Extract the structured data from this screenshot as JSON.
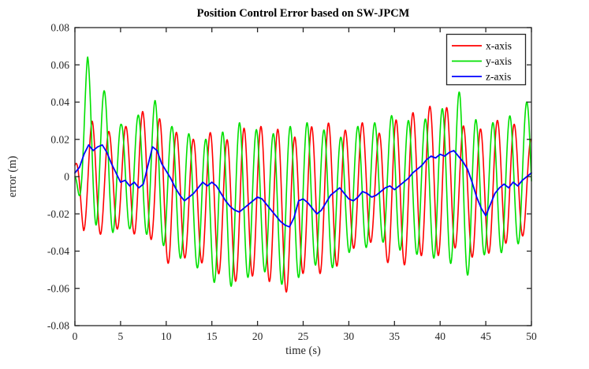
{
  "chart_data": {
    "type": "line",
    "title": "Position Control Error based on SW-JPCM",
    "xlabel": "time (s)",
    "ylabel": "error (m)",
    "xlim": [
      0,
      50
    ],
    "ylim": [
      -0.08,
      0.08
    ],
    "xticks": [
      0,
      5,
      10,
      15,
      20,
      25,
      30,
      35,
      40,
      45,
      50
    ],
    "xtick_labels": [
      "0",
      "5",
      "10",
      "15",
      "20",
      "25",
      "30",
      "35",
      "40",
      "45",
      "50"
    ],
    "yticks": [
      -0.08,
      -0.06,
      -0.04,
      -0.02,
      0,
      0.02,
      0.04,
      0.06,
      0.08
    ],
    "ytick_labels": [
      "-0.08",
      "-0.06",
      "-0.04",
      "-0.02",
      "0",
      "0.02",
      "0.04",
      "0.06",
      "0.08"
    ],
    "grid": false,
    "axis_color": "#262626",
    "background_color": "#ffffff",
    "legend": {
      "position": "top-right",
      "border": true,
      "entries": [
        {
          "label": "x-axis",
          "color": "#ff0000"
        },
        {
          "label": "y-axis",
          "color": "#00e000"
        },
        {
          "label": "z-axis",
          "color": "#0000ff"
        }
      ]
    },
    "series": [
      {
        "name": "x-axis",
        "color": "#ff0000",
        "model": "am_sine",
        "period_s": 1.85,
        "phase_s": -0.44,
        "envelope_upper": [
          [
            0,
            0.006
          ],
          [
            1.9,
            0.03
          ],
          [
            3.8,
            0.024
          ],
          [
            5.6,
            0.027
          ],
          [
            7.4,
            0.035
          ],
          [
            9.3,
            0.031
          ],
          [
            11,
            0.024
          ],
          [
            13,
            0.02
          ],
          [
            15,
            0.024
          ],
          [
            17,
            0.019
          ],
          [
            18.5,
            0.026
          ],
          [
            20.5,
            0.027
          ],
          [
            22,
            0.026
          ],
          [
            24,
            0.021
          ],
          [
            26,
            0.027
          ],
          [
            28,
            0.029
          ],
          [
            30,
            0.024
          ],
          [
            31.5,
            0.029
          ],
          [
            33,
            0.022
          ],
          [
            35,
            0.03
          ],
          [
            36.5,
            0.034
          ],
          [
            38,
            0.035
          ],
          [
            39.6,
            0.04
          ],
          [
            41.5,
            0.035
          ],
          [
            43,
            0.024
          ],
          [
            44.8,
            0.026
          ],
          [
            46,
            0.03
          ],
          [
            47.5,
            0.031
          ],
          [
            49,
            0.024
          ],
          [
            50,
            0.02
          ]
        ],
        "envelope_lower": [
          [
            0,
            -0.006
          ],
          [
            0.95,
            -0.029
          ],
          [
            2.85,
            -0.031
          ],
          [
            4.75,
            -0.028
          ],
          [
            6.6,
            -0.031
          ],
          [
            8.5,
            -0.034
          ],
          [
            10.4,
            -0.048
          ],
          [
            12.3,
            -0.043
          ],
          [
            14.2,
            -0.047
          ],
          [
            16,
            -0.053
          ],
          [
            18,
            -0.057
          ],
          [
            20,
            -0.052
          ],
          [
            21.8,
            -0.058
          ],
          [
            23.5,
            -0.063
          ],
          [
            25.4,
            -0.049
          ],
          [
            27.3,
            -0.053
          ],
          [
            29,
            -0.047
          ],
          [
            31,
            -0.036
          ],
          [
            33,
            -0.035
          ],
          [
            34.8,
            -0.051
          ],
          [
            36.6,
            -0.046
          ],
          [
            38.5,
            -0.041
          ],
          [
            40.4,
            -0.043
          ],
          [
            42,
            -0.037
          ],
          [
            44.4,
            -0.047
          ],
          [
            46,
            -0.037
          ],
          [
            48,
            -0.035
          ],
          [
            50,
            -0.029
          ]
        ]
      },
      {
        "name": "y-axis",
        "color": "#00e000",
        "model": "am_sine",
        "period_s": 1.85,
        "phase_s": 0.9175,
        "envelope_upper": [
          [
            0,
            0.004
          ],
          [
            1.38,
            0.0645
          ],
          [
            3.23,
            0.046
          ],
          [
            5.08,
            0.028
          ],
          [
            6.93,
            0.033
          ],
          [
            8.78,
            0.041
          ],
          [
            10.6,
            0.027
          ],
          [
            12.5,
            0.023
          ],
          [
            14.3,
            0.02
          ],
          [
            16.2,
            0.024
          ],
          [
            18,
            0.029
          ],
          [
            20,
            0.025
          ],
          [
            21.7,
            0.023
          ],
          [
            23.6,
            0.027
          ],
          [
            25.4,
            0.029
          ],
          [
            27.3,
            0.025
          ],
          [
            29.2,
            0.021
          ],
          [
            31,
            0.027
          ],
          [
            32.9,
            0.029
          ],
          [
            34.8,
            0.033
          ],
          [
            36.6,
            0.03
          ],
          [
            38.5,
            0.031
          ],
          [
            40.4,
            0.037
          ],
          [
            42.2,
            0.046
          ],
          [
            44.1,
            0.029
          ],
          [
            46,
            0.029
          ],
          [
            47.8,
            0.033
          ],
          [
            49.7,
            0.041
          ],
          [
            50,
            0.04
          ]
        ],
        "envelope_lower": [
          [
            0,
            -0.004
          ],
          [
            0.45,
            -0.01
          ],
          [
            2.3,
            -0.026
          ],
          [
            4.16,
            -0.03
          ],
          [
            6,
            -0.028
          ],
          [
            7.86,
            -0.031
          ],
          [
            9.7,
            -0.037
          ],
          [
            11.6,
            -0.044
          ],
          [
            13.4,
            -0.049
          ],
          [
            15.3,
            -0.057
          ],
          [
            17.2,
            -0.059
          ],
          [
            19,
            -0.054
          ],
          [
            20.9,
            -0.051
          ],
          [
            22.7,
            -0.058
          ],
          [
            24.6,
            -0.054
          ],
          [
            26.5,
            -0.047
          ],
          [
            28.3,
            -0.049
          ],
          [
            30.2,
            -0.04
          ],
          [
            32,
            -0.038
          ],
          [
            33.9,
            -0.035
          ],
          [
            35.8,
            -0.04
          ],
          [
            37.7,
            -0.042
          ],
          [
            39.5,
            -0.044
          ],
          [
            41.4,
            -0.047
          ],
          [
            43.3,
            -0.054
          ],
          [
            45.1,
            -0.04
          ],
          [
            47,
            -0.041
          ],
          [
            48.9,
            -0.035
          ],
          [
            50,
            -0.031
          ]
        ]
      },
      {
        "name": "z-axis",
        "color": "#0000ff",
        "model": "points",
        "points": [
          [
            0,
            0.002
          ],
          [
            0.5,
            0.005
          ],
          [
            1,
            0.012
          ],
          [
            1.5,
            0.017
          ],
          [
            2,
            0.014
          ],
          [
            2.5,
            0.016
          ],
          [
            3,
            0.017
          ],
          [
            3.5,
            0.013
          ],
          [
            4,
            0.007
          ],
          [
            4.5,
            0.002
          ],
          [
            5,
            -0.003
          ],
          [
            5.5,
            -0.002
          ],
          [
            6,
            -0.005
          ],
          [
            6.5,
            -0.003
          ],
          [
            7,
            -0.006
          ],
          [
            7.5,
            -0.004
          ],
          [
            8,
            0.006
          ],
          [
            8.5,
            0.016
          ],
          [
            9,
            0.014
          ],
          [
            9.5,
            0.007
          ],
          [
            10,
            0.003
          ],
          [
            10.5,
            -0.001
          ],
          [
            11,
            -0.006
          ],
          [
            11.5,
            -0.01
          ],
          [
            12,
            -0.013
          ],
          [
            12.5,
            -0.011
          ],
          [
            13,
            -0.009
          ],
          [
            13.5,
            -0.006
          ],
          [
            14,
            -0.003
          ],
          [
            14.5,
            -0.005
          ],
          [
            15,
            -0.003
          ],
          [
            15.5,
            -0.005
          ],
          [
            16,
            -0.009
          ],
          [
            16.5,
            -0.013
          ],
          [
            17,
            -0.016
          ],
          [
            17.5,
            -0.018
          ],
          [
            18,
            -0.019
          ],
          [
            18.5,
            -0.017
          ],
          [
            19,
            -0.015
          ],
          [
            19.5,
            -0.013
          ],
          [
            20,
            -0.011
          ],
          [
            20.5,
            -0.012
          ],
          [
            21,
            -0.015
          ],
          [
            21.5,
            -0.018
          ],
          [
            22,
            -0.021
          ],
          [
            22.5,
            -0.024
          ],
          [
            23,
            -0.026
          ],
          [
            23.5,
            -0.027
          ],
          [
            24,
            -0.022
          ],
          [
            24.5,
            -0.013
          ],
          [
            25,
            -0.012
          ],
          [
            25.5,
            -0.014
          ],
          [
            26,
            -0.017
          ],
          [
            26.5,
            -0.02
          ],
          [
            27,
            -0.018
          ],
          [
            27.5,
            -0.014
          ],
          [
            28,
            -0.01
          ],
          [
            28.5,
            -0.008
          ],
          [
            29,
            -0.006
          ],
          [
            29.5,
            -0.009
          ],
          [
            30,
            -0.012
          ],
          [
            30.5,
            -0.013
          ],
          [
            31,
            -0.011
          ],
          [
            31.5,
            -0.008
          ],
          [
            32,
            -0.009
          ],
          [
            32.5,
            -0.011
          ],
          [
            33,
            -0.01
          ],
          [
            33.5,
            -0.008
          ],
          [
            34,
            -0.006
          ],
          [
            34.5,
            -0.005
          ],
          [
            35,
            -0.007
          ],
          [
            35.5,
            -0.005
          ],
          [
            36,
            -0.003
          ],
          [
            36.5,
            -0.001
          ],
          [
            37,
            0.002
          ],
          [
            37.5,
            0.004
          ],
          [
            38,
            0.006
          ],
          [
            38.5,
            0.009
          ],
          [
            39,
            0.011
          ],
          [
            39.5,
            0.01
          ],
          [
            40,
            0.012
          ],
          [
            40.5,
            0.011
          ],
          [
            41,
            0.013
          ],
          [
            41.5,
            0.014
          ],
          [
            42,
            0.011
          ],
          [
            42.5,
            0.008
          ],
          [
            43,
            0.004
          ],
          [
            43.5,
            -0.003
          ],
          [
            44,
            -0.011
          ],
          [
            44.5,
            -0.017
          ],
          [
            45,
            -0.021
          ],
          [
            45.5,
            -0.015
          ],
          [
            46,
            -0.009
          ],
          [
            46.5,
            -0.006
          ],
          [
            47,
            -0.004
          ],
          [
            47.5,
            -0.006
          ],
          [
            48,
            -0.003
          ],
          [
            48.5,
            -0.005
          ],
          [
            49,
            -0.002
          ],
          [
            49.5,
            0
          ],
          [
            50,
            0.002
          ]
        ]
      }
    ]
  }
}
